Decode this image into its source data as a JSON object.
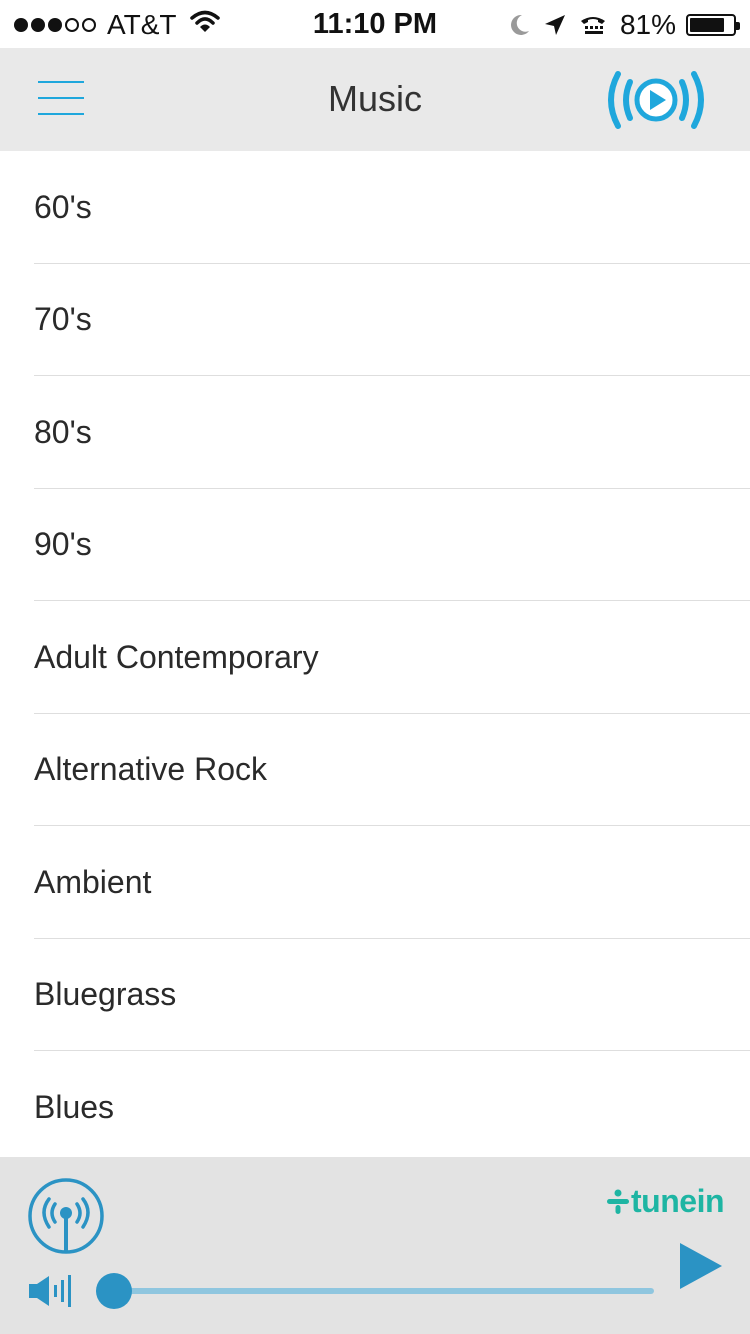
{
  "status_bar": {
    "carrier": "AT&T",
    "time": "11:10 PM",
    "battery_percent": "81%",
    "battery_level": 0.81,
    "signal_bars_filled": 3,
    "signal_bars_total": 5,
    "icons": [
      "wifi-icon",
      "moon-icon",
      "location-arrow-icon",
      "tty-icon",
      "battery-icon"
    ]
  },
  "nav": {
    "title": "Music",
    "menu_icon": "hamburger-menu-icon",
    "now_playing_icon": "now-playing-broadcast-icon"
  },
  "genres": [
    "60's",
    "70's",
    "80's",
    "90's",
    "Adult Contemporary",
    "Alternative Rock",
    "Ambient",
    "Bluegrass",
    "Blues"
  ],
  "player": {
    "brand": "tunein",
    "station_icon": "radio-broadcast-icon",
    "volume_icon": "speaker-volume-icon",
    "play_icon": "play-icon",
    "volume_level": 0.0
  },
  "colors": {
    "accent": "#1fa7dc",
    "player_blue": "#2b93c4",
    "tunein_green": "#1eb5a3",
    "nav_bg": "#e9e9e9",
    "player_bg": "#e3e3e3"
  }
}
